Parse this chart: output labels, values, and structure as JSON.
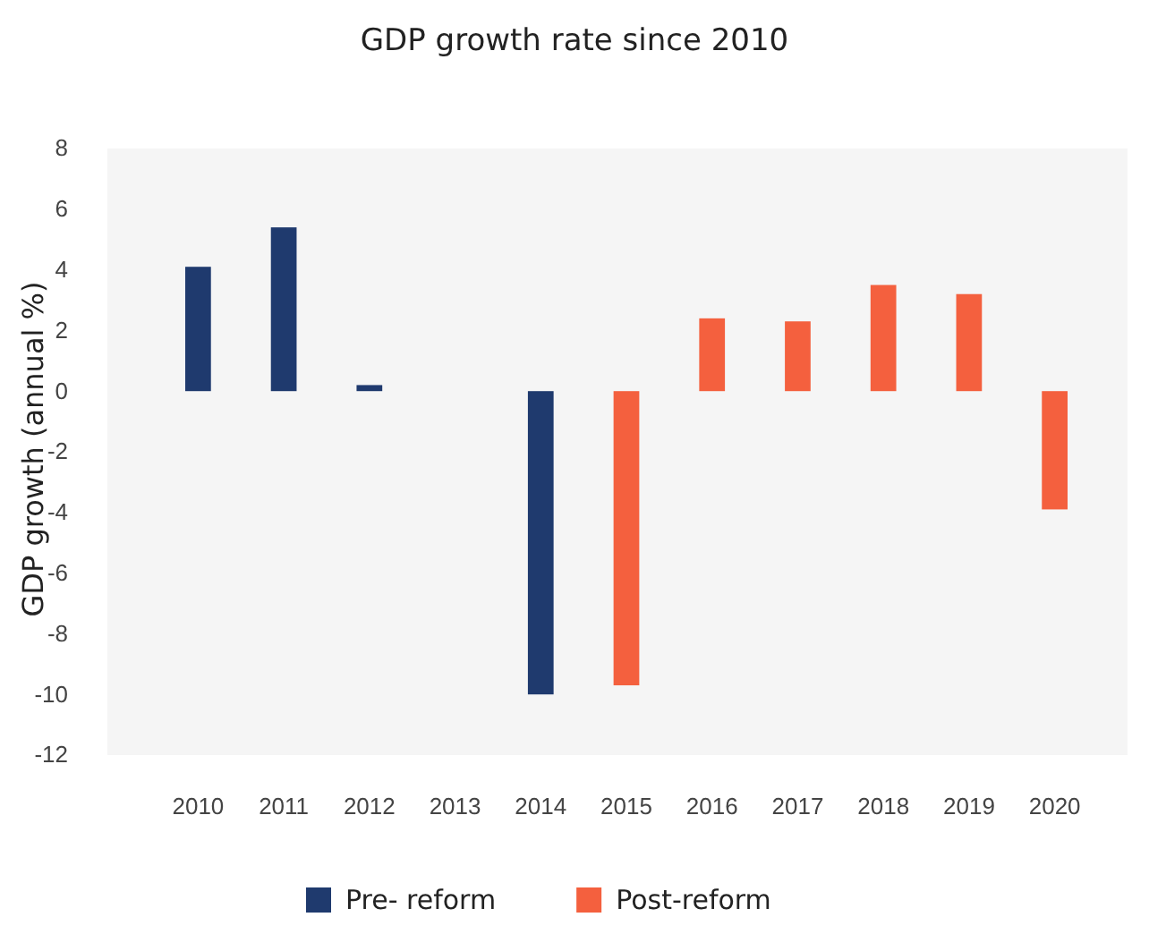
{
  "chart_data": {
    "type": "bar",
    "title": "GDP growth rate since 2010",
    "ylabel": "GDP growth (annual %)",
    "categories": [
      "2010",
      "2011",
      "2012",
      "2013",
      "2014",
      "2015",
      "2016",
      "2017",
      "2018",
      "2019",
      "2020"
    ],
    "series": [
      {
        "name": "Pre- reform",
        "color": "#1f3a6e",
        "values": [
          4.1,
          5.4,
          0.2,
          0,
          -10,
          null,
          null,
          null,
          null,
          null,
          null
        ]
      },
      {
        "name": "Post-reform",
        "color": "#f4603e",
        "values": [
          null,
          null,
          null,
          null,
          null,
          -9.7,
          2.4,
          2.3,
          3.5,
          3.2,
          -3.9
        ]
      }
    ],
    "ylim": [
      -12,
      8
    ],
    "yticks": [
      -12,
      -10,
      -8,
      -6,
      -4,
      -2,
      0,
      2,
      4,
      6,
      8
    ],
    "grid": false,
    "legend": "bottom"
  }
}
